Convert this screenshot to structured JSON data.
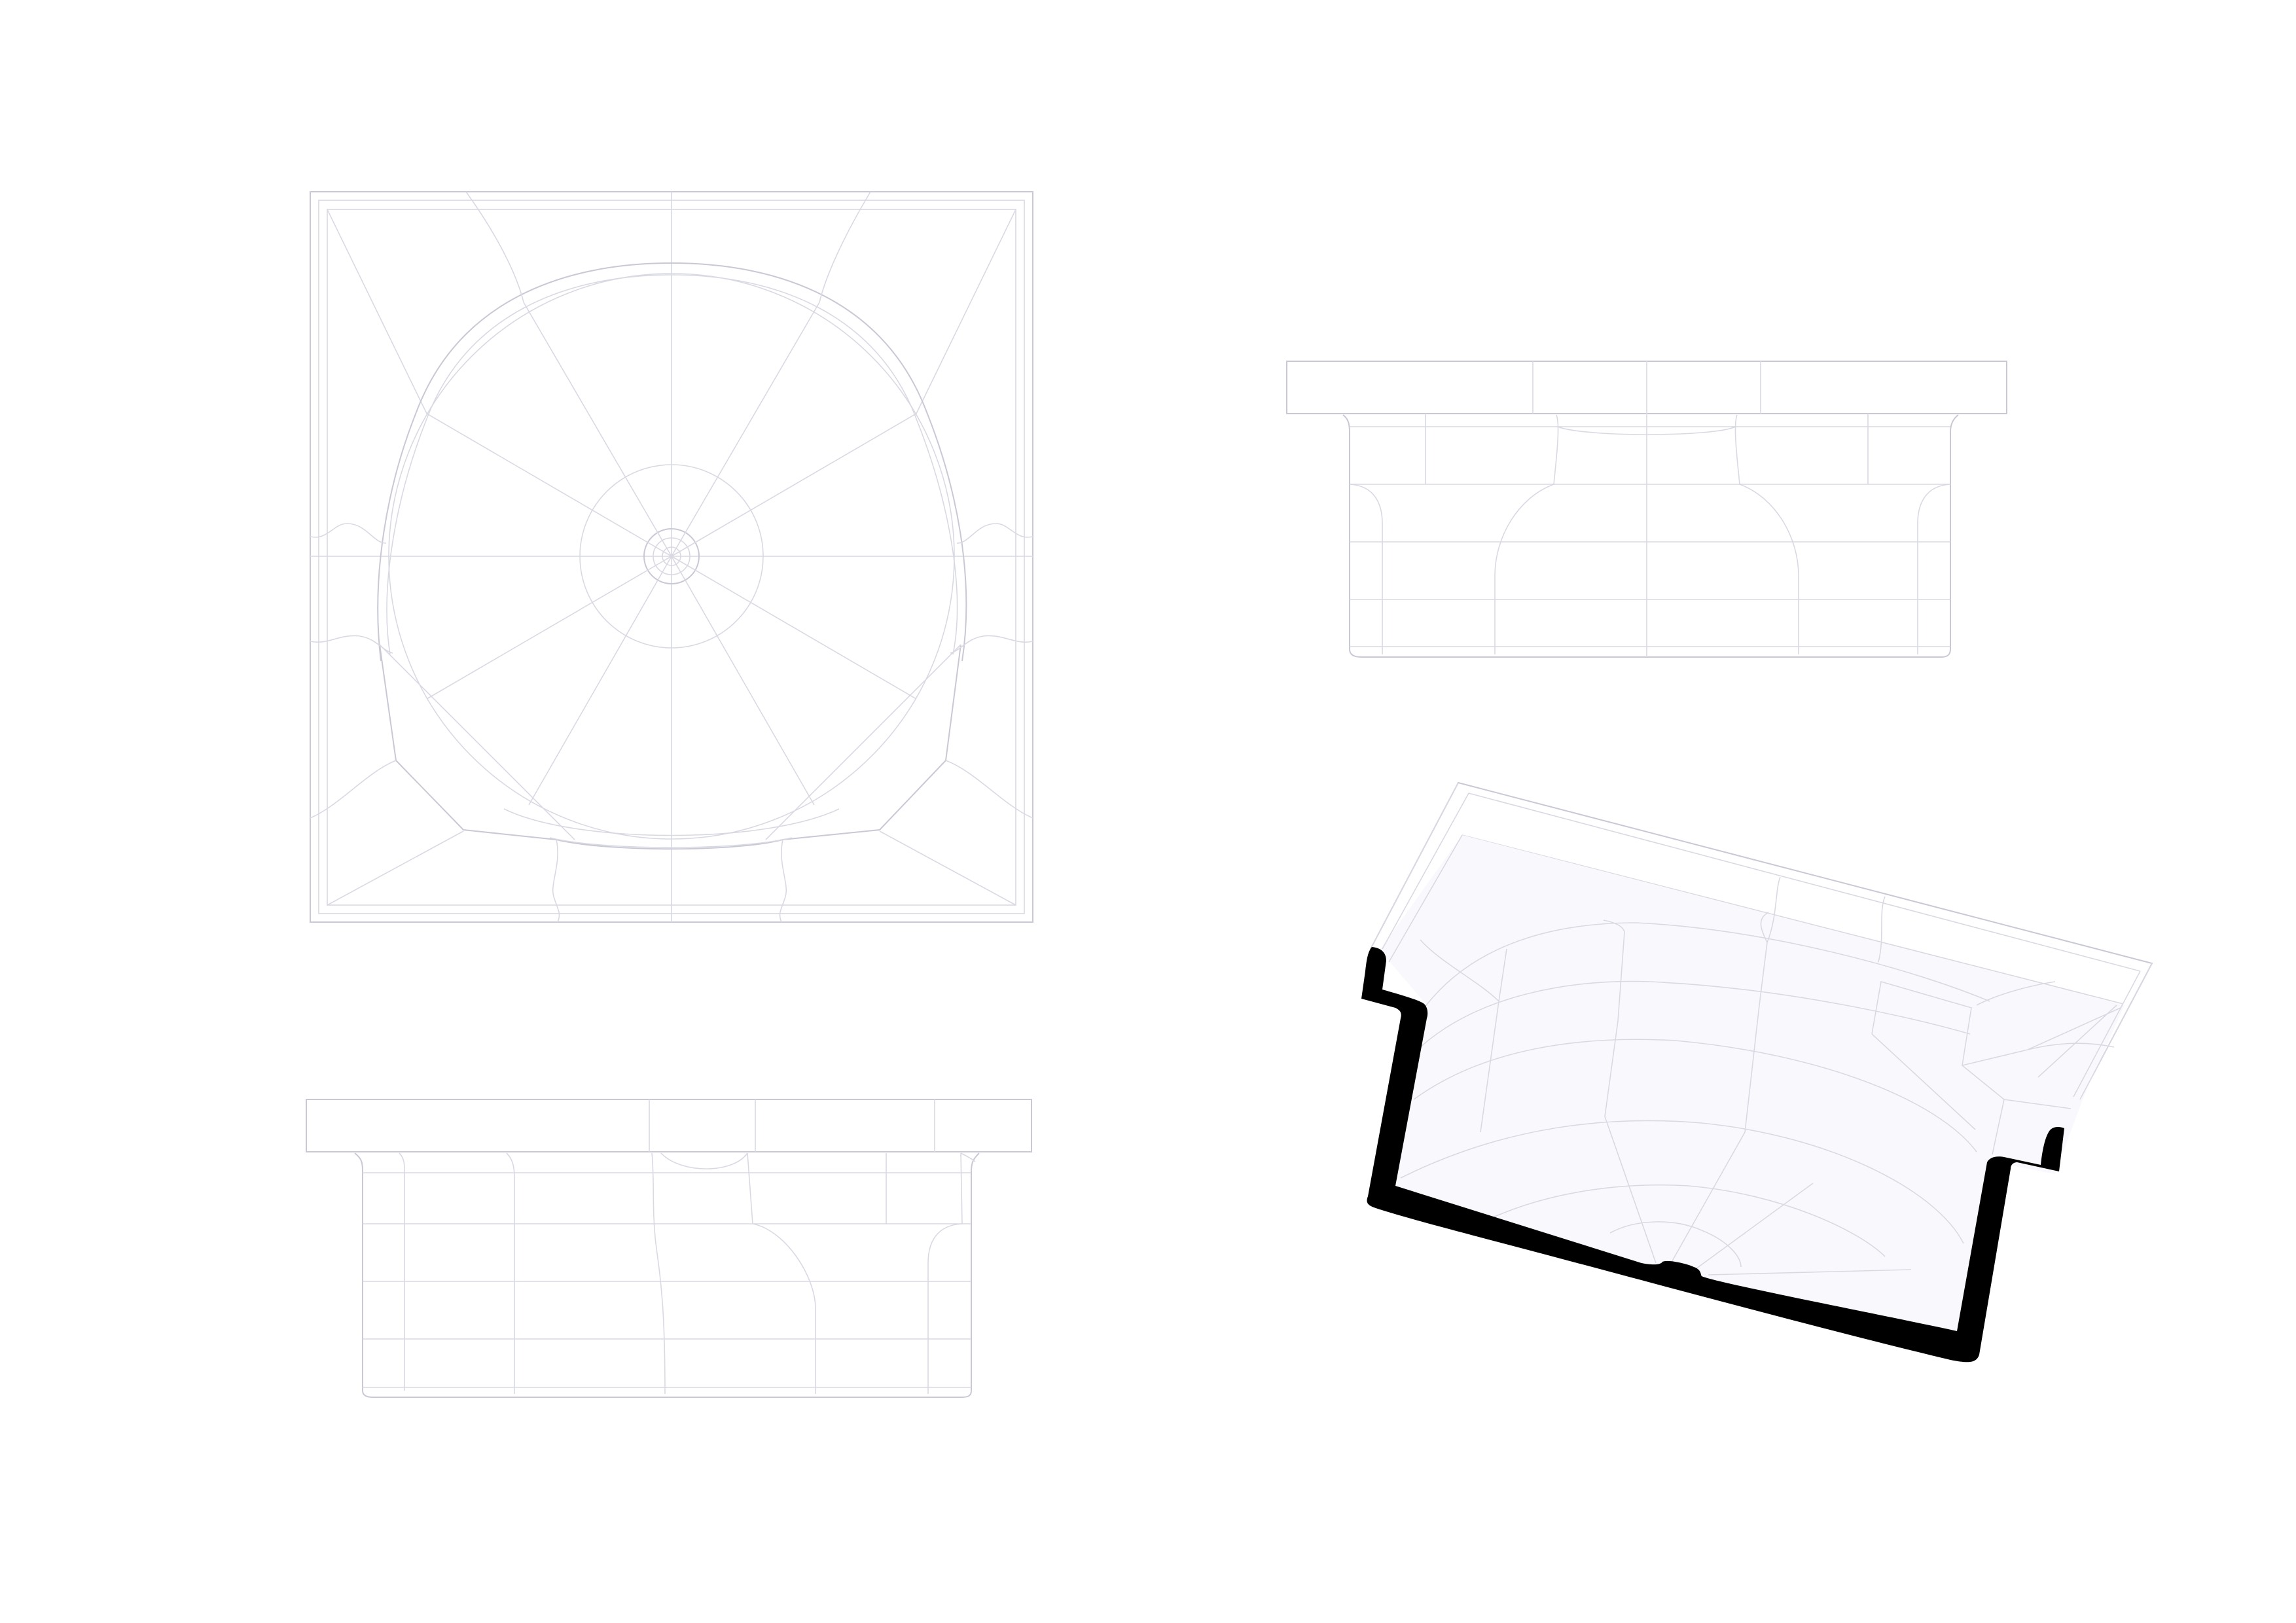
{
  "drawing": {
    "views": [
      {
        "id": "plan",
        "kind": "top-view"
      },
      {
        "id": "elevation-front",
        "kind": "front-elevation"
      },
      {
        "id": "elevation-side",
        "kind": "side-elevation"
      },
      {
        "id": "section-perspective",
        "kind": "sectioned-isometric"
      }
    ],
    "colors": {
      "surface": "#f9f9fd",
      "linework": "#c9c9d6",
      "section_cut": "#000000",
      "background": "#ffffff"
    }
  }
}
